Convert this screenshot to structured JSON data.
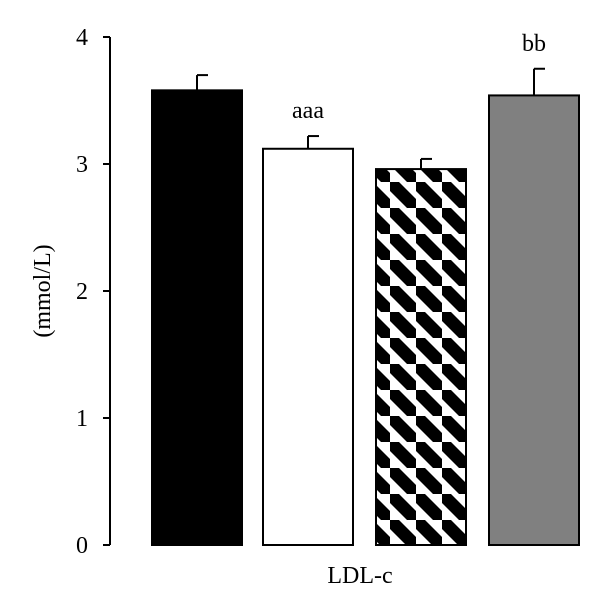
{
  "chart_data": {
    "type": "bar",
    "categories": [
      "",
      "",
      "",
      ""
    ],
    "values": [
      3.58,
      3.12,
      2.96,
      3.54
    ],
    "errors": [
      0.12,
      0.1,
      0.08,
      0.21
    ],
    "annotations": [
      "",
      "aaa",
      "",
      "bb"
    ],
    "fills": [
      "solid-black",
      "white",
      "diagonal-stripes",
      "solid-gray"
    ],
    "colors": {
      "black": "#000000",
      "white": "#ffffff",
      "gray": "#808080"
    },
    "xlabel": "LDL-c",
    "ylabel": "(mmol/L)",
    "ylim": [
      0,
      4
    ],
    "yticks": [
      0,
      1,
      2,
      3,
      4
    ],
    "grid": false,
    "legend": "none"
  }
}
